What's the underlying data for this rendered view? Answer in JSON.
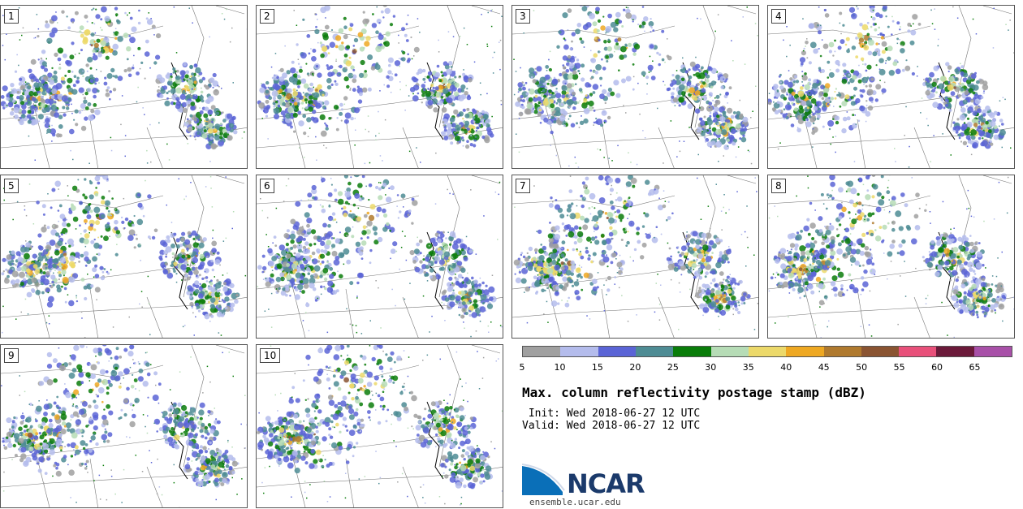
{
  "panels": [
    {
      "label": "1"
    },
    {
      "label": "2"
    },
    {
      "label": "3"
    },
    {
      "label": "4"
    },
    {
      "label": "5"
    },
    {
      "label": "6"
    },
    {
      "label": "7"
    },
    {
      "label": "8"
    },
    {
      "label": "9"
    },
    {
      "label": "10"
    }
  ],
  "colorbar": {
    "colors": [
      "#a0a0a0",
      "#b4bcec",
      "#5a64d6",
      "#4e8c94",
      "#0a7d0a",
      "#b6dcb6",
      "#ecd96a",
      "#eea822",
      "#b07a2e",
      "#8a5432",
      "#e8507a",
      "#6b1a3a",
      "#a850a8"
    ],
    "ticks": [
      "5",
      "10",
      "15",
      "20",
      "25",
      "30",
      "35",
      "40",
      "45",
      "50",
      "55",
      "60",
      "65"
    ]
  },
  "title": "Max. column reflectivity postage stamp (dBZ)",
  "init": " Init: Wed 2018-06-27 12 UTC",
  "valid": "Valid: Wed 2018-06-27 12 UTC",
  "logo": {
    "text": "NCAR",
    "site": "ensemble.ucar.edu"
  }
}
